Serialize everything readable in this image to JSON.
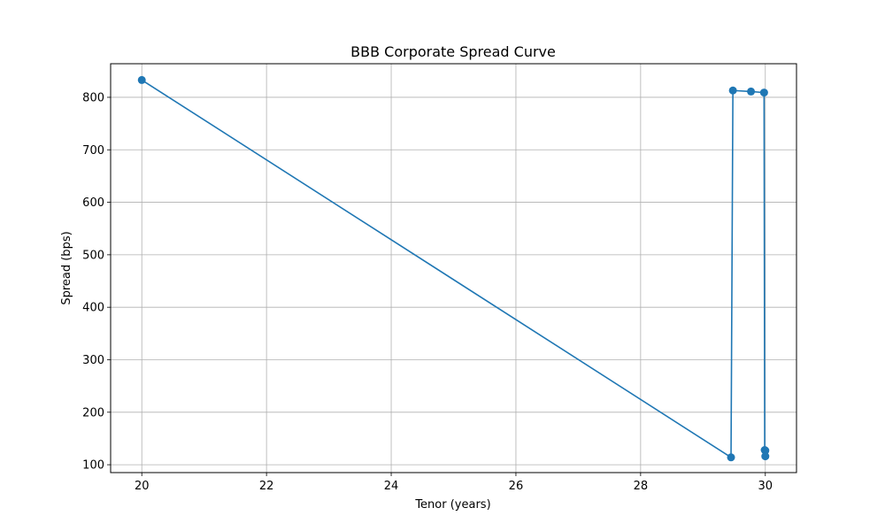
{
  "chart_data": {
    "type": "line",
    "title": "BBB Corporate Spread Curve",
    "xlabel": "Tenor (years)",
    "ylabel": "Spread (bps)",
    "xlim": [
      19.5,
      30.5
    ],
    "ylim": [
      85,
      864
    ],
    "xticks": [
      20,
      22,
      24,
      26,
      28,
      30
    ],
    "yticks": [
      100,
      200,
      300,
      400,
      500,
      600,
      700,
      800
    ],
    "grid": true,
    "legend": "none",
    "color": "#1f77b4",
    "marker": "circle",
    "series": [
      {
        "x": [
          20.0,
          29.45,
          29.48,
          29.77,
          29.98,
          29.99,
          30.0,
          30.0
        ],
        "y": [
          833,
          114,
          813,
          811,
          809,
          128,
          127,
          116
        ]
      }
    ]
  }
}
